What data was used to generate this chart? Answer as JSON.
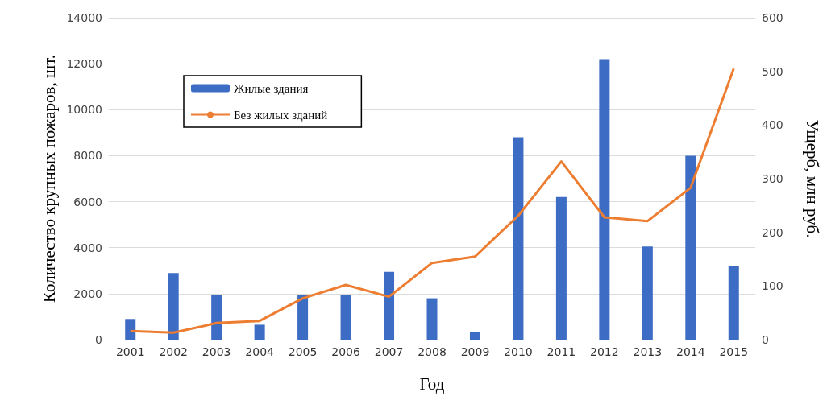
{
  "chart_data": {
    "type": "bar",
    "xlabel": "Год",
    "ylabel": "Количество крупных пожаров, шт.",
    "y2label": "Ущерб, млн руб.",
    "categories": [
      "2001",
      "2002",
      "2003",
      "2004",
      "2005",
      "2006",
      "2007",
      "2008",
      "2009",
      "2010",
      "2011",
      "2012",
      "2013",
      "2014",
      "2015"
    ],
    "series": [
      {
        "name": "Жилые здания",
        "color": "#3d6cc4",
        "values": [
          900,
          2900,
          1950,
          650,
          1950,
          1950,
          2950,
          1800,
          350,
          8800,
          6200,
          12200,
          4050,
          8000,
          3200
        ]
      },
      {
        "name": "Без жилых зданий",
        "type": "line",
        "axis": "y2",
        "color": "#ed7d31",
        "values": [
          16,
          13,
          31,
          35,
          77,
          102,
          80,
          143,
          155,
          231,
          332,
          228,
          221,
          283,
          505
        ]
      }
    ],
    "ylim": [
      0,
      14000
    ],
    "yticks": [
      0,
      2000,
      4000,
      6000,
      8000,
      10000,
      12000,
      14000
    ],
    "y2lim": [
      0,
      600
    ],
    "y2ticks": [
      0,
      100,
      200,
      300,
      400,
      500,
      600
    ],
    "grid": "y",
    "legend": "top left",
    "marker": "none"
  }
}
